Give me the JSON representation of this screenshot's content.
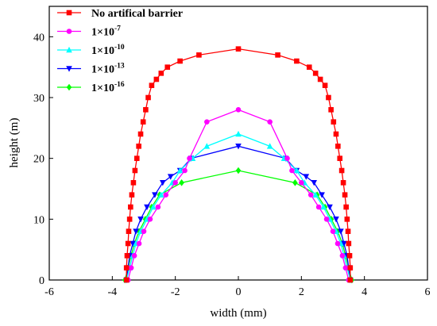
{
  "chart_data": {
    "type": "line",
    "xlabel": "width (mm)",
    "ylabel": "height (m)",
    "xlim": [
      -6,
      6
    ],
    "ylim": [
      0,
      45
    ],
    "x_ticks": [
      -6,
      -4,
      -2,
      0,
      2,
      4,
      6
    ],
    "y_ticks": [
      0,
      10,
      20,
      30,
      40
    ],
    "x_tick_labels": [
      "-6",
      "-4",
      "-2",
      "0",
      "2",
      "4",
      "6"
    ],
    "y_tick_labels": [
      "0",
      "10",
      "20",
      "30",
      "40"
    ],
    "grid": false,
    "legend_position": "top-left",
    "series": [
      {
        "name": "No artifical barrier",
        "name_base": "No artifical barrier",
        "name_sup": "",
        "color": "#ff0000",
        "marker": "square",
        "x": [
          -3.55,
          -3.55,
          -3.53,
          -3.5,
          -3.48,
          -3.45,
          -3.42,
          -3.38,
          -3.33,
          -3.28,
          -3.22,
          -3.16,
          -3.1,
          -3.02,
          -2.94,
          -2.86,
          -2.75,
          -2.6,
          -2.45,
          -2.25,
          -1.85,
          -1.25,
          0,
          1.25,
          1.85,
          2.25,
          2.45,
          2.6,
          2.75,
          2.86,
          2.94,
          3.02,
          3.1,
          3.16,
          3.22,
          3.28,
          3.33,
          3.38,
          3.42,
          3.45,
          3.48,
          3.5,
          3.53,
          3.55,
          3.55
        ],
        "y": [
          0,
          2,
          4,
          6,
          8,
          10,
          12,
          14,
          16,
          18,
          20,
          22,
          24,
          26,
          28,
          30,
          32,
          33,
          34,
          35,
          36,
          37,
          38,
          37,
          36,
          35,
          34,
          33,
          32,
          30,
          28,
          26,
          24,
          22,
          20,
          18,
          16,
          14,
          12,
          10,
          8,
          6,
          4,
          2,
          0
        ]
      },
      {
        "name": "1×10-7",
        "name_base": "1×10",
        "name_sup": "-7",
        "color": "#ff00ff",
        "marker": "circle",
        "x": [
          -3.5,
          -3.4,
          -3.3,
          -3.15,
          -3.0,
          -2.8,
          -2.55,
          -2.3,
          -2.0,
          -1.7,
          -1.55,
          -1.0,
          0,
          1.0,
          1.55,
          1.7,
          2.0,
          2.3,
          2.55,
          2.8,
          3.0,
          3.15,
          3.3,
          3.4,
          3.5
        ],
        "y": [
          0,
          2,
          4,
          6,
          8,
          10,
          12,
          14,
          16,
          18,
          20,
          26,
          28,
          26,
          20,
          18,
          16,
          14,
          12,
          10,
          8,
          6,
          4,
          2,
          0
        ]
      },
      {
        "name": "1×10-10",
        "name_base": "1×10",
        "name_sup": "-10",
        "color": "#00ffff",
        "marker": "triangle-up",
        "x": [
          -3.55,
          -3.45,
          -3.35,
          -3.25,
          -3.1,
          -2.9,
          -2.7,
          -2.45,
          -2.1,
          -1.85,
          -1.45,
          -1.0,
          0,
          1.0,
          1.45,
          1.85,
          2.1,
          2.45,
          2.7,
          2.9,
          3.1,
          3.25,
          3.35,
          3.45,
          3.55
        ],
        "y": [
          0,
          2,
          4,
          6,
          8,
          10,
          12,
          14,
          16,
          18,
          20,
          22,
          24,
          22,
          20,
          18,
          16,
          14,
          12,
          10,
          8,
          6,
          4,
          2,
          0
        ]
      },
      {
        "name": "1×10-13",
        "name_base": "1×10",
        "name_sup": "-13",
        "color": "#0000ff",
        "marker": "triangle-down",
        "x": [
          -3.55,
          -3.5,
          -3.45,
          -3.35,
          -3.25,
          -3.1,
          -2.9,
          -2.65,
          -2.4,
          -2.15,
          -1.85,
          -1.5,
          0,
          1.5,
          1.85,
          2.15,
          2.4,
          2.65,
          2.9,
          3.1,
          3.25,
          3.35,
          3.45,
          3.5,
          3.55
        ],
        "y": [
          0,
          2,
          4,
          6,
          8,
          10,
          12,
          14,
          16,
          17,
          18,
          20,
          22,
          20,
          18,
          17,
          16,
          14,
          12,
          10,
          8,
          6,
          4,
          2,
          0
        ]
      },
      {
        "name": "1×10-16",
        "name_base": "1×10",
        "name_sup": "-16",
        "color": "#00ff00",
        "marker": "diamond",
        "x": [
          -3.6,
          -3.5,
          -3.4,
          -3.3,
          -3.15,
          -2.95,
          -2.75,
          -2.5,
          -1.8,
          0,
          1.8,
          2.5,
          2.75,
          2.95,
          3.15,
          3.3,
          3.4,
          3.5,
          3.6
        ],
        "y": [
          0,
          2,
          4,
          6,
          8,
          10,
          12,
          14,
          16,
          18,
          16,
          14,
          12,
          10,
          8,
          6,
          4,
          2,
          0
        ]
      }
    ]
  }
}
